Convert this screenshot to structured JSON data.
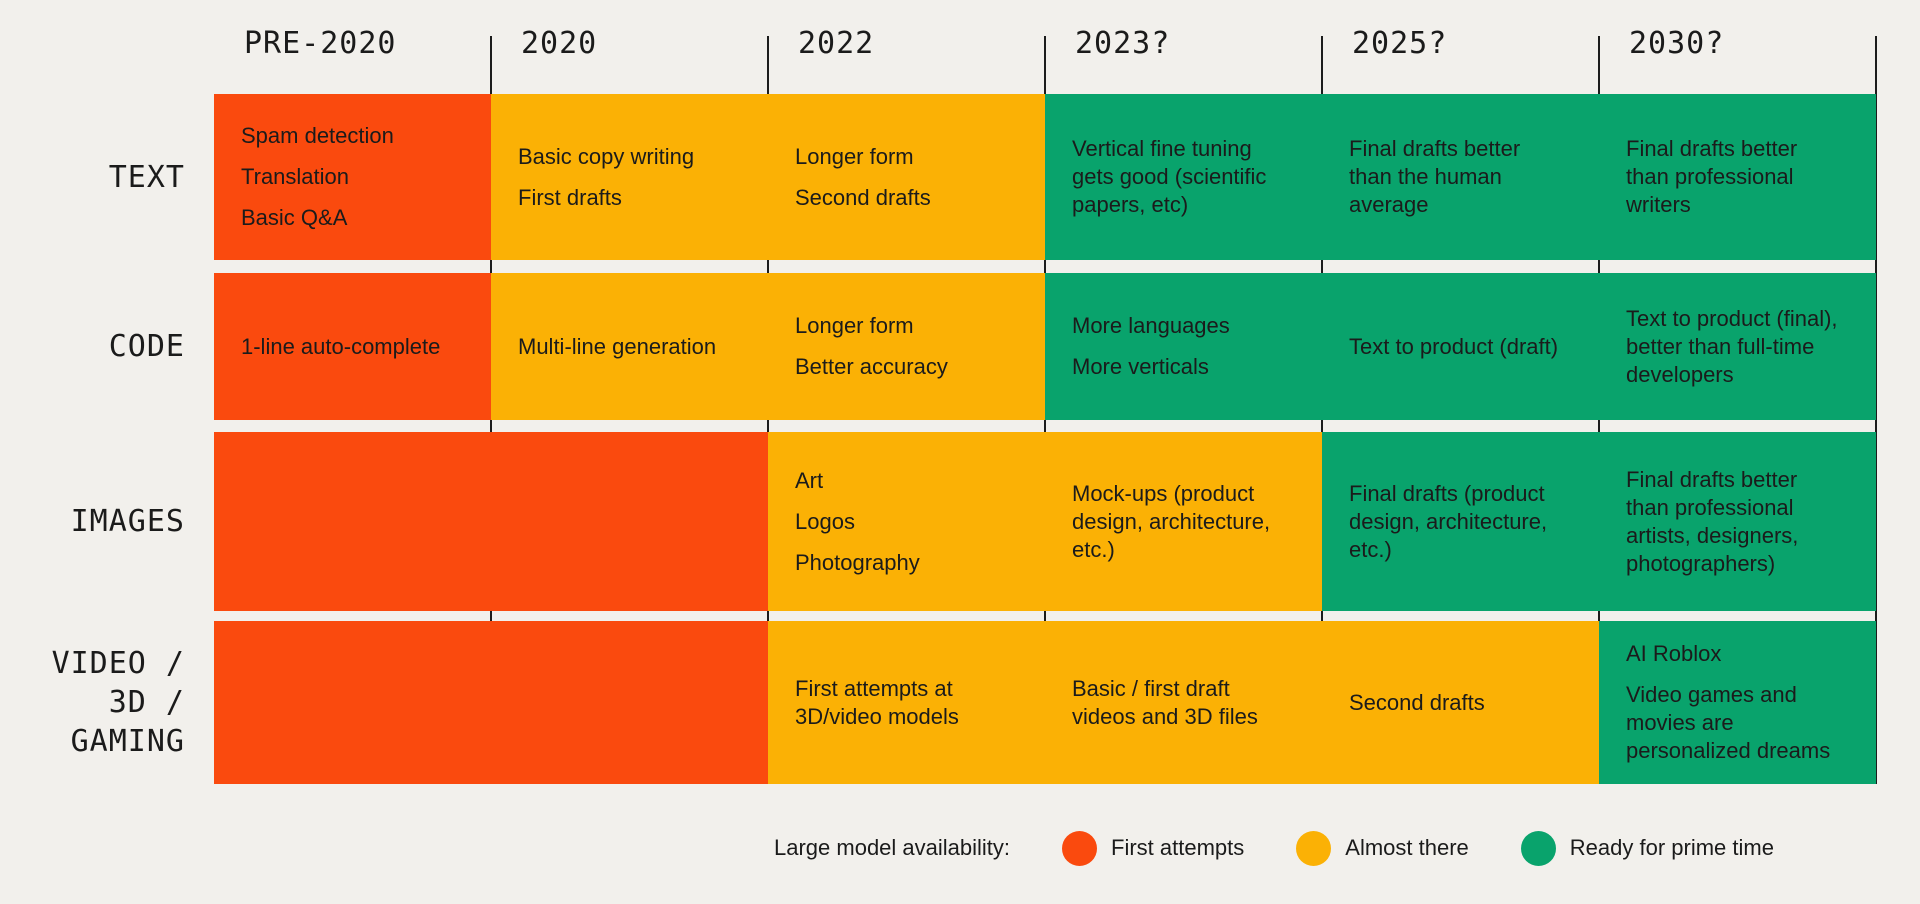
{
  "palette": {
    "first-attempts": "#FA4A0E",
    "almost-there": "#FBB105",
    "ready-for-prime-time": "#09A36C",
    "background": "#F2F0EC",
    "text": "#1B1B1B",
    "line": "#1C1C1C"
  },
  "columns": [
    "PRE-2020",
    "2020",
    "2022",
    "2023?",
    "2025?",
    "2030?"
  ],
  "rows": [
    {
      "key": "text",
      "label_lines": [
        "TEXT"
      ],
      "cells": [
        {
          "status": "first-attempts",
          "items": [
            "Spam detection",
            "Translation",
            "Basic Q&A"
          ]
        },
        {
          "status": "almost-there",
          "items": [
            "Basic copy writing",
            "First drafts"
          ]
        },
        {
          "status": "almost-there",
          "items": [
            "Longer form",
            "Second drafts"
          ]
        },
        {
          "status": "ready-for-prime-time",
          "items": [
            "Vertical fine tuning gets good (scientific papers, etc)"
          ]
        },
        {
          "status": "ready-for-prime-time",
          "items": [
            "Final drafts better than the human average"
          ]
        },
        {
          "status": "ready-for-prime-time",
          "items": [
            "Final drafts better than professional writers"
          ]
        }
      ]
    },
    {
      "key": "code",
      "label_lines": [
        "CODE"
      ],
      "cells": [
        {
          "status": "first-attempts",
          "items": [
            "1-line auto-complete"
          ]
        },
        {
          "status": "almost-there",
          "items": [
            "Multi-line generation"
          ]
        },
        {
          "status": "almost-there",
          "items": [
            "Longer form",
            "Better accuracy"
          ]
        },
        {
          "status": "ready-for-prime-time",
          "items": [
            "More languages",
            "More verticals"
          ]
        },
        {
          "status": "ready-for-prime-time",
          "items": [
            "Text to product (draft)"
          ]
        },
        {
          "status": "ready-for-prime-time",
          "items": [
            "Text to product (final), better than full-time developers"
          ]
        }
      ]
    },
    {
      "key": "images",
      "label_lines": [
        "IMAGES"
      ],
      "cells": [
        {
          "status": "first-attempts",
          "items": []
        },
        {
          "status": "first-attempts",
          "items": []
        },
        {
          "status": "almost-there",
          "items": [
            "Art",
            "Logos",
            "Photography"
          ]
        },
        {
          "status": "almost-there",
          "items": [
            "Mock-ups (product design, architecture, etc.)"
          ]
        },
        {
          "status": "ready-for-prime-time",
          "items": [
            "Final drafts (product design, architecture, etc.)"
          ]
        },
        {
          "status": "ready-for-prime-time",
          "items": [
            "Final drafts better than professional artists, designers, photographers)"
          ]
        }
      ]
    },
    {
      "key": "video-3d-gaming",
      "label_lines": [
        "VIDEO /",
        "3D /",
        "GAMING"
      ],
      "cells": [
        {
          "status": "first-attempts",
          "items": []
        },
        {
          "status": "first-attempts",
          "items": []
        },
        {
          "status": "almost-there",
          "items": [
            "First attempts at 3D/video models"
          ]
        },
        {
          "status": "almost-there",
          "items": [
            "Basic / first draft videos and 3D files"
          ]
        },
        {
          "status": "almost-there",
          "items": [
            "Second drafts"
          ]
        },
        {
          "status": "ready-for-prime-time",
          "items": [
            "AI Roblox",
            "Video games and movies are personalized dreams"
          ]
        }
      ]
    }
  ],
  "legend": {
    "title": "Large model availability:",
    "items": [
      {
        "label": "First attempts",
        "status": "first-attempts"
      },
      {
        "label": "Almost there",
        "status": "almost-there"
      },
      {
        "label": "Ready for prime time",
        "status": "ready-for-prime-time"
      }
    ]
  }
}
